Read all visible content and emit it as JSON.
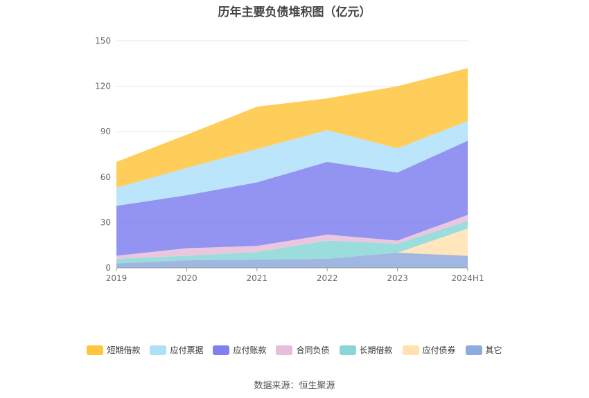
{
  "chart_data": {
    "type": "area",
    "stacked": true,
    "title": "历年主要负债堆积图（亿元）",
    "categories": [
      "2019",
      "2020",
      "2021",
      "2022",
      "2023",
      "2024H1"
    ],
    "ylim": [
      0,
      150
    ],
    "yticks": [
      0,
      30,
      60,
      90,
      120,
      150
    ],
    "grid": true,
    "legend_position": "bottom",
    "series": [
      {
        "name": "其它",
        "color": "#8faadc",
        "values": [
          3,
          5,
          5.5,
          6,
          10,
          8
        ]
      },
      {
        "name": "应付债券",
        "color": "#ffe2b0",
        "values": [
          0,
          0,
          0,
          0,
          0,
          18
        ]
      },
      {
        "name": "长期借款",
        "color": "#8ad6d6",
        "values": [
          3,
          3,
          5,
          12,
          6,
          5
        ]
      },
      {
        "name": "合同负债",
        "color": "#e8bdd9",
        "values": [
          2,
          5,
          4,
          4,
          2,
          4
        ]
      },
      {
        "name": "应付账款",
        "color": "#8080f0",
        "values": [
          33,
          35,
          42,
          48,
          45,
          49
        ]
      },
      {
        "name": "应付票据",
        "color": "#aee0fa",
        "values": [
          12,
          18,
          22,
          21,
          16,
          13
        ]
      },
      {
        "name": "短期借款",
        "color": "#ffc53d",
        "values": [
          17,
          22,
          28,
          21,
          41,
          35
        ]
      }
    ]
  },
  "legend": [
    {
      "label": "短期借款",
      "color": "#ffc53d"
    },
    {
      "label": "应付票据",
      "color": "#aee0fa"
    },
    {
      "label": "应付账款",
      "color": "#8080f0"
    },
    {
      "label": "合同负债",
      "color": "#e8bdd9"
    },
    {
      "label": "长期借款",
      "color": "#8ad6d6"
    },
    {
      "label": "应付债券",
      "color": "#ffe2b0"
    },
    {
      "label": "其它",
      "color": "#8faadc"
    }
  ],
  "source": "数据来源：恒生聚源"
}
